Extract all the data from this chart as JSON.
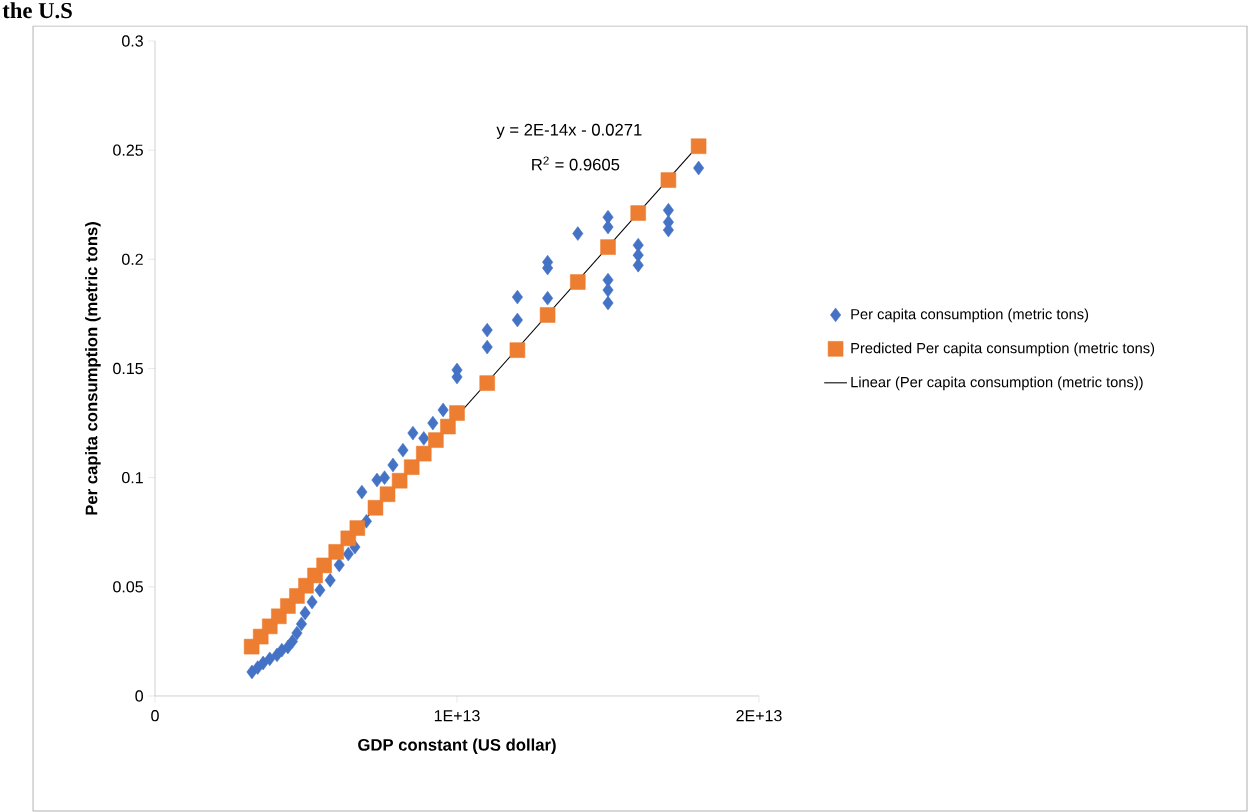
{
  "chart_data": {
    "type": "scatter",
    "title": "the U.S",
    "xlabel": "GDP constant (US dollar)",
    "ylabel": "Per capita consumption (metric tons)",
    "annotations": [
      "y = 2E-14x - 0.0271",
      "R$^{2}$ = 0.9605"
    ],
    "xlim": [
      0,
      20000000000000
    ],
    "ylim": [
      0,
      0.3
    ],
    "xticks": [
      0,
      {
        "value": 10000000000000,
        "label": "1E+13"
      },
      {
        "value": 20000000000000,
        "label": "2E+13"
      }
    ],
    "yticks": [
      0,
      0.05,
      0.1,
      0.15,
      0.2,
      0.25,
      0.3
    ],
    "grid": false,
    "legend": "right",
    "series": [
      {
        "name": "Per capita consumption (metric tons)",
        "type": "scatter",
        "marker": "diamond",
        "color": "#4472c4",
        "x": [
          3210000000000.0,
          3400000000000.0,
          3580000000000.0,
          3800000000000.0,
          4040000000000.0,
          4200000000000.0,
          4400000000000.0,
          4550000000000.0,
          4700000000000.0,
          4850000000000.0,
          4970000000000.0,
          5200000000000.0,
          5460000000000.0,
          5800000000000.0,
          6100000000000.0,
          6400000000000.0,
          6620000000000.0,
          6850000000000.0,
          7000000000000.0,
          7350000000000.0,
          7600000000000.0,
          7880000000000.0,
          8210000000000.0,
          8540000000000.0,
          8900000000000.0,
          9200000000000.0,
          9540000000000.0,
          10000000000000.0,
          10000000000000.0,
          11000000000000.0,
          11000000000000.0,
          12000000000000.0,
          12000000000000.0,
          13000000000000.0,
          13000000000000.0,
          13000000000000.0,
          14000000000000.0,
          15000000000000.0,
          15000000000000.0,
          15000000000000.0,
          15000000000000.0,
          15000000000000.0,
          16000000000000.0,
          16000000000000.0,
          16000000000000.0,
          17000000000000.0,
          17000000000000.0,
          17000000000000.0,
          18000000000000.0
        ],
        "values": [
          0.011,
          0.013,
          0.0151,
          0.017,
          0.0188,
          0.021,
          0.0224,
          0.025,
          0.0288,
          0.033,
          0.038,
          0.043,
          0.0485,
          0.053,
          0.06,
          0.065,
          0.0682,
          0.0934,
          0.08,
          0.0989,
          0.1,
          0.1058,
          0.1126,
          0.1204,
          0.118,
          0.125,
          0.131,
          0.1493,
          0.1461,
          0.1676,
          0.1598,
          0.1827,
          0.1722,
          0.1987,
          0.196,
          0.1822,
          0.2118,
          0.2193,
          0.2148,
          0.1905,
          0.1859,
          0.18,
          0.2065,
          0.2019,
          0.1973,
          0.2225,
          0.217,
          0.2134,
          0.2418
        ]
      },
      {
        "name": "Predicted Per capita consumption (metric tons)",
        "type": "scatter",
        "marker": "square",
        "color": "#ed7d31",
        "x": [
          3200000000000.0,
          3500000000000.0,
          3800000000000.0,
          4100000000000.0,
          4400000000000.0,
          4700000000000.0,
          5000000000000.0,
          5300000000000.0,
          5600000000000.0,
          6000000000000.0,
          6400000000000.0,
          6700000000000.0,
          7300000000000.0,
          7700000000000.0,
          8100000000000.0,
          8500000000000.0,
          8900000000000.0,
          9300000000000.0,
          9700000000000.0,
          10000000000000.0,
          11000000000000.0,
          12000000000000.0,
          13000000000000.0,
          14000000000000.0,
          15000000000000.0,
          16000000000000.0,
          17000000000000.0,
          18000000000000.0
        ],
        "values": [
          0.0226,
          0.0272,
          0.0319,
          0.0365,
          0.0412,
          0.0458,
          0.0505,
          0.0552,
          0.0598,
          0.066,
          0.0722,
          0.0769,
          0.0862,
          0.0924,
          0.0986,
          0.1048,
          0.111,
          0.1172,
          0.1234,
          0.1296,
          0.1433,
          0.1584,
          0.1745,
          0.1896,
          0.2056,
          0.2212,
          0.2363,
          0.2518
        ]
      },
      {
        "name": "Linear (Per capita consumption (metric tons))",
        "type": "line",
        "marker": "none",
        "line_style": "solid",
        "color": "#000000",
        "x": [
          3200000000000.0,
          18000000000000.0
        ],
        "values": [
          0.0226,
          0.2523
        ]
      }
    ]
  }
}
